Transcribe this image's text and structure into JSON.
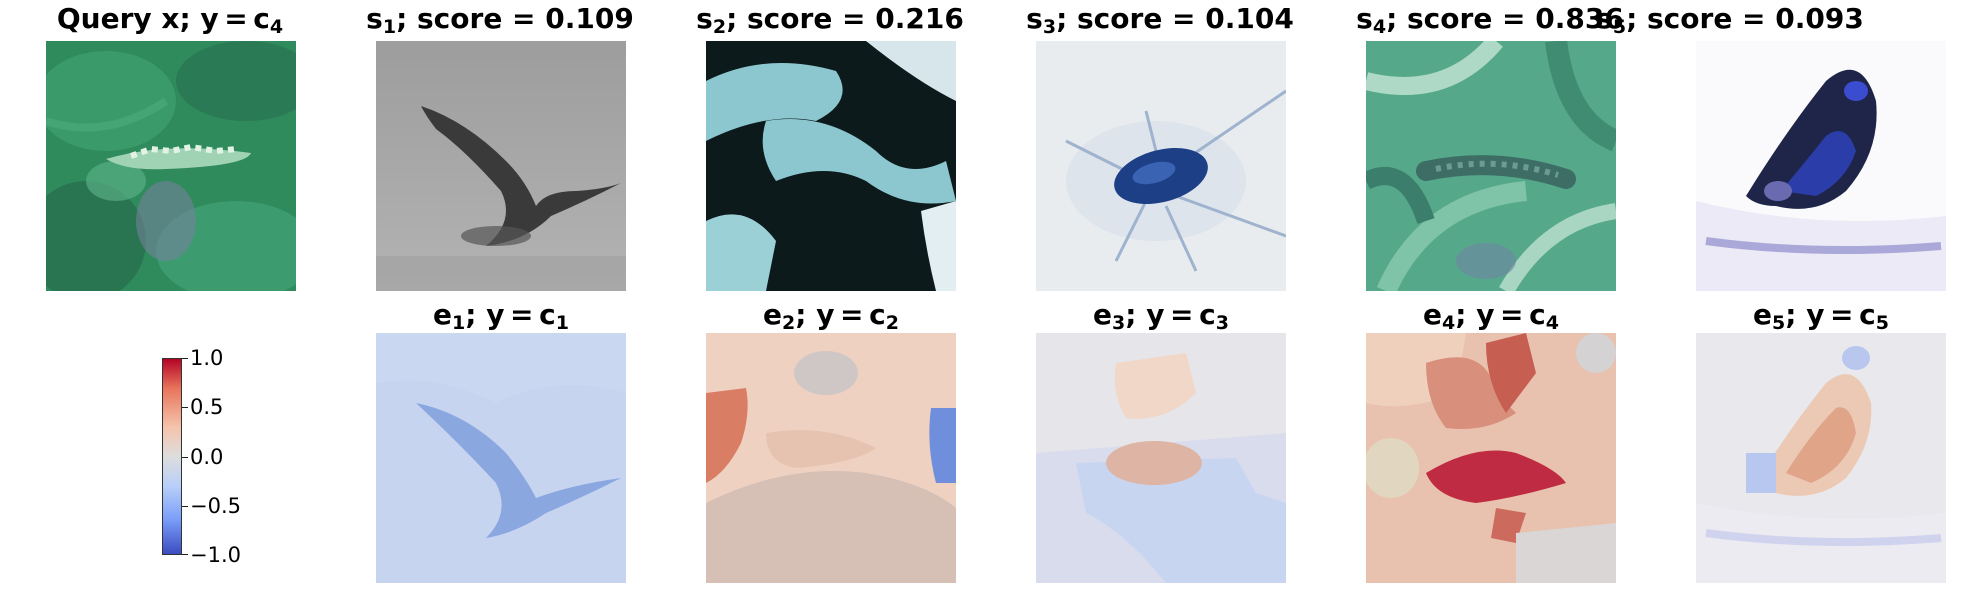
{
  "query": {
    "prefix": "Query x; y = c",
    "sub": "4"
  },
  "samples": [
    {
      "sym": "s",
      "sub": "1",
      "score_text": "; score = 0.109",
      "score": 0.109
    },
    {
      "sym": "s",
      "sub": "2",
      "score_text": "; score = 0.216",
      "score": 0.216
    },
    {
      "sym": "s",
      "sub": "3",
      "score_text": "; score = 0.104",
      "score": 0.104
    },
    {
      "sym": "s",
      "sub": "4",
      "score_text": "; score = 0.836",
      "score": 0.836
    },
    {
      "sym": "s",
      "sub": "5",
      "score_text": "; score = 0.093",
      "score": 0.093
    }
  ],
  "explanations": [
    {
      "sym": "e",
      "sub": "1",
      "mid": "; y = c",
      "csub": "1"
    },
    {
      "sym": "e",
      "sub": "2",
      "mid": "; y = c",
      "csub": "2"
    },
    {
      "sym": "e",
      "sub": "3",
      "mid": "; y = c",
      "csub": "3"
    },
    {
      "sym": "e",
      "sub": "4",
      "mid": "; y = c",
      "csub": "4"
    },
    {
      "sym": "e",
      "sub": "5",
      "mid": "; y = c",
      "csub": "5"
    }
  ],
  "colorbar": {
    "colormap": "coolwarm",
    "ticks": [
      "1.0",
      "0.5",
      "0.0",
      "−0.5",
      "−1.0"
    ],
    "min": -1.0,
    "max": 1.0
  },
  "colors": {
    "warm_high": "#b40426",
    "neutral": "#dddddd",
    "cool_low": "#3b4cc0"
  }
}
